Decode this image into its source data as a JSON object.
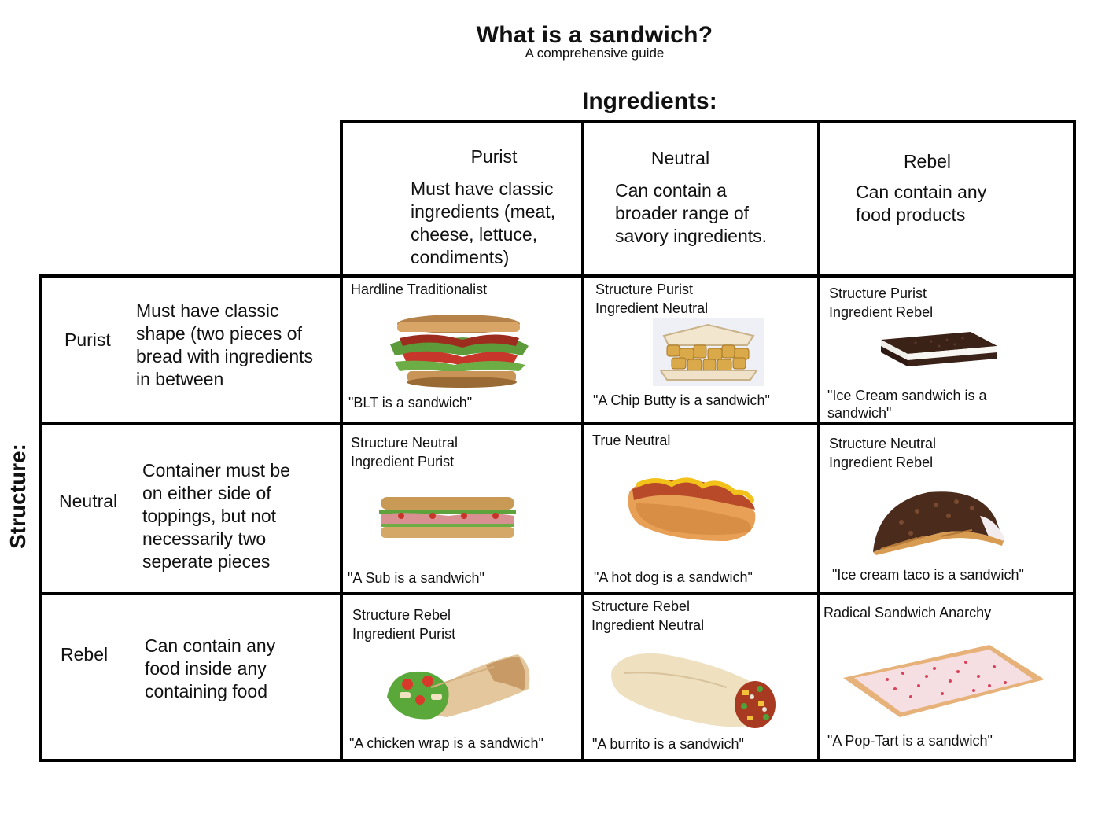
{
  "header": {
    "title": "What is a sandwich?",
    "subtitle": "A comprehensive guide"
  },
  "axes": {
    "ingredients_label": "Ingredients:",
    "structure_label": "Structure:"
  },
  "columns": [
    {
      "name": "Purist",
      "desc_lines": [
        "Must have classic",
        "ingredients (meat,",
        "cheese, lettuce,",
        "condiments)"
      ]
    },
    {
      "name": "Neutral",
      "desc_lines": [
        "Can contain a",
        "broader range of",
        "savory ingredients."
      ]
    },
    {
      "name": "Rebel",
      "desc_lines": [
        "Can contain any",
        "food products"
      ]
    }
  ],
  "rows": [
    {
      "name": "Purist",
      "desc_lines": [
        "Must have classic",
        "shape (two pieces of",
        "bread with ingredients",
        "in between"
      ]
    },
    {
      "name": "Neutral",
      "desc_lines": [
        "Container must be",
        "on either side of",
        "toppings, but not",
        "necessarily two",
        "seperate pieces"
      ]
    },
    {
      "name": "Rebel",
      "desc_lines": [
        "Can contain any",
        "food inside any",
        "containing food"
      ]
    }
  ],
  "cells": [
    {
      "caption_lines": [
        "Hardline Traditionalist"
      ],
      "quote": "\"BLT is a sandwich\"",
      "image": "blt-sandwich-image"
    },
    {
      "caption_lines": [
        "Structure Purist",
        "Ingredient Neutral"
      ],
      "quote": "\"A Chip Butty is a sandwich\"",
      "image": "chip-butty-image"
    },
    {
      "caption_lines": [
        "Structure Purist",
        "Ingredient Rebel"
      ],
      "quote": "\"Ice Cream sandwich is a sandwich\"",
      "image": "ice-cream-sandwich-image"
    },
    {
      "caption_lines": [
        "Structure Neutral",
        "Ingredient Purist"
      ],
      "quote": "\"A Sub is a sandwich\"",
      "image": "sub-sandwich-image"
    },
    {
      "caption_lines": [
        "True Neutral"
      ],
      "quote": "\"A hot dog is a sandwich\"",
      "image": "hot-dog-image"
    },
    {
      "caption_lines": [
        "Structure Neutral",
        "Ingredient Rebel"
      ],
      "quote": "\"Ice cream taco is a sandwich\"",
      "image": "ice-cream-taco-image"
    },
    {
      "caption_lines": [
        "Structure Rebel",
        "Ingredient Purist"
      ],
      "quote": "\"A chicken wrap is a sandwich\"",
      "image": "chicken-wrap-image"
    },
    {
      "caption_lines": [
        "Structure Rebel",
        "Ingredient Neutral"
      ],
      "quote": "\"A burrito is a sandwich\"",
      "image": "burrito-image"
    },
    {
      "caption_lines": [
        "Radical Sandwich Anarchy"
      ],
      "quote": "\"A Pop-Tart is a sandwich\"",
      "image": "pop-tart-image"
    }
  ]
}
